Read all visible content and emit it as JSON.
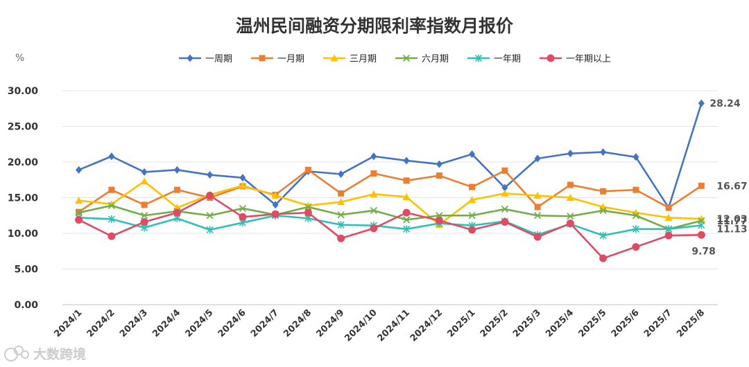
{
  "watermark": "大数跨境",
  "chart_data": {
    "type": "line",
    "title": "温州民间融资分期限利率指数月报价",
    "ylabel": "%",
    "ylim": [
      0,
      30
    ],
    "yticks": [
      "0.00",
      "5.00",
      "10.00",
      "15.00",
      "20.00",
      "25.00",
      "30.00"
    ],
    "grid": true,
    "legend_position": "top",
    "categories": [
      "2024/1",
      "2024/2",
      "2024/3",
      "2024/4",
      "2024/5",
      "2024/6",
      "2024/7",
      "2024/8",
      "2024/9",
      "2024/10",
      "2024/11",
      "2024/12",
      "2025/1",
      "2025/2",
      "2025/3",
      "2025/4",
      "2025/5",
      "2025/6",
      "2025/7",
      "2025/8"
    ],
    "series": [
      {
        "name": "一周期",
        "color": "#4472C4",
        "marker": "diamond",
        "values": [
          18.9,
          20.8,
          18.6,
          18.9,
          18.2,
          17.8,
          14.0,
          18.7,
          18.3,
          20.8,
          20.2,
          19.7,
          21.1,
          16.4,
          20.5,
          21.2,
          21.4,
          20.7,
          13.6,
          28.24
        ],
        "end_label": "28.24"
      },
      {
        "name": "一月期",
        "color": "#ED7D31",
        "marker": "square",
        "values": [
          13.0,
          16.1,
          14.0,
          16.1,
          15.0,
          16.6,
          15.4,
          18.9,
          15.6,
          18.4,
          17.4,
          18.1,
          16.5,
          18.8,
          13.7,
          16.8,
          15.9,
          16.1,
          13.6,
          16.67
        ],
        "end_label": "16.67"
      },
      {
        "name": "三月期",
        "color": "#FFC000",
        "marker": "triangle",
        "values": [
          14.6,
          14.1,
          17.3,
          13.6,
          15.4,
          16.7,
          15.3,
          13.9,
          14.4,
          15.5,
          15.1,
          11.2,
          14.7,
          15.6,
          15.3,
          15.0,
          13.7,
          12.9,
          12.2,
          12.03
        ],
        "end_label": "12.03"
      },
      {
        "name": "六月期",
        "color": "#70AD47",
        "marker": "x",
        "values": [
          12.9,
          13.9,
          12.5,
          13.1,
          12.5,
          13.5,
          12.6,
          13.7,
          12.6,
          13.2,
          11.9,
          12.5,
          12.5,
          13.4,
          12.5,
          12.4,
          13.2,
          12.5,
          10.6,
          11.77
        ],
        "end_label": "11.77"
      },
      {
        "name": "一年期",
        "color": "#2FBFB5",
        "marker": "asterisk",
        "values": [
          12.2,
          12.0,
          10.8,
          12.1,
          10.5,
          11.5,
          12.5,
          12.1,
          11.2,
          11.1,
          10.6,
          11.4,
          11.1,
          11.7,
          9.8,
          11.3,
          9.7,
          10.6,
          10.6,
          11.13
        ],
        "end_label": "11.13"
      },
      {
        "name": "一年期以上",
        "color": "#E04B64",
        "marker": "circle",
        "values": [
          11.9,
          9.6,
          11.6,
          12.9,
          15.3,
          12.3,
          12.7,
          12.9,
          9.3,
          10.7,
          12.9,
          11.8,
          10.5,
          11.6,
          9.5,
          11.4,
          6.5,
          8.1,
          9.7,
          9.78
        ],
        "end_label": "9.78"
      }
    ]
  }
}
